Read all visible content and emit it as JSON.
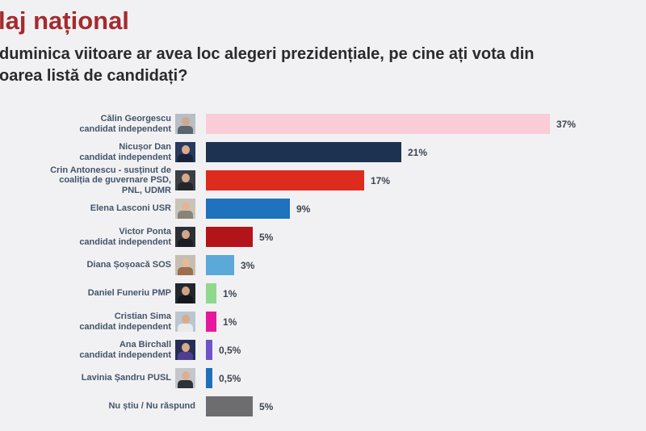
{
  "title": "laj național",
  "question": {
    "line1": "duminica viitoare ar avea loc alegeri prezidențiale, pe cine ați vota din",
    "line2": "oarea listă de candidați?"
  },
  "colors": {
    "background": "#f1f1f3",
    "title": "#a62a2e",
    "question_text": "#2a2a2c",
    "candidate_label": "#44546a",
    "value_label": "#3d4450"
  },
  "chart_data": {
    "type": "bar",
    "orientation": "horizontal",
    "unit": "%",
    "title": "laj național",
    "legend": "none",
    "grid": "off",
    "xlim": [
      0,
      40
    ],
    "categories": [
      "Călin Georgescu candidat independent",
      "Nicușor Dan candidat independent",
      "Crin Antonescu - susținut de coaliția de guvernare PSD, PNL, UDMR",
      "Elena Lasconi USR",
      "Victor Ponta candidat independent",
      "Diana Șoșoacă SOS",
      "Daniel Funeriu PMP",
      "Cristian Sima candidat independent",
      "Ana Birchall candidat independent",
      "Lavinia Șandru PUSL",
      "Nu știu / Nu răspund"
    ],
    "values": [
      37,
      21,
      17,
      9,
      5,
      3,
      1,
      1,
      0.5,
      0.5,
      5
    ],
    "bars": [
      {
        "label_lines": [
          "Călin Georgescu",
          "candidat independent"
        ],
        "value": 37,
        "value_label": "37%",
        "color": "#f8cdd8",
        "photo": {
          "bg": "#b9bec4",
          "head": "#cfa98d",
          "torso": "#5a6570"
        }
      },
      {
        "label_lines": [
          "Nicușor Dan",
          "candidat independent"
        ],
        "value": 21,
        "value_label": "21%",
        "color": "#1d3250",
        "photo": {
          "bg": "#27395c",
          "head": "#d8ab8a",
          "torso": "#17233c"
        }
      },
      {
        "label_lines": [
          "Crin Antonescu - susținut de",
          "coaliția de guvernare PSD,",
          "PNL, UDMR"
        ],
        "value": 17,
        "value_label": "17%",
        "color": "#dd2b1e",
        "photo": {
          "bg": "#3a3f45",
          "head": "#d8a98a",
          "torso": "#23272c"
        }
      },
      {
        "label_lines": [
          "Elena Lasconi USR"
        ],
        "value": 9,
        "value_label": "9%",
        "color": "#1e72be",
        "photo": {
          "bg": "#c9c3b8",
          "head": "#e0b896",
          "torso": "#8a8478"
        }
      },
      {
        "label_lines": [
          "Victor Ponta",
          "candidat independent"
        ],
        "value": 5,
        "value_label": "5%",
        "color": "#b3141a",
        "photo": {
          "bg": "#2b3036",
          "head": "#d3a686",
          "torso": "#1b1f24"
        }
      },
      {
        "label_lines": [
          "Diana Șoșoacă SOS"
        ],
        "value": 3,
        "value_label": "3%",
        "color": "#5aa9d9",
        "photo": {
          "bg": "#c6beb2",
          "head": "#e2bb98",
          "torso": "#9a6e4e"
        }
      },
      {
        "label_lines": [
          "Daniel Funeriu PMP"
        ],
        "value": 1,
        "value_label": "1%",
        "color": "#90d88e",
        "photo": {
          "bg": "#22272e",
          "head": "#d0a482",
          "torso": "#14181e"
        }
      },
      {
        "label_lines": [
          "Cristian Sima",
          "candidat independent"
        ],
        "value": 1,
        "value_label": "1%",
        "color": "#e6189e",
        "photo": {
          "bg": "#bcc6cd",
          "head": "#d6ac8c",
          "torso": "#e8eaec"
        }
      },
      {
        "label_lines": [
          "Ana Birchall",
          "candidat independent"
        ],
        "value": 0.5,
        "value_label": "0,5%",
        "color": "#6f54c8",
        "photo": {
          "bg": "#272e55",
          "head": "#d8ab8a",
          "torso": "#4d3f8f"
        }
      },
      {
        "label_lines": [
          "Lavinia Șandru PUSL"
        ],
        "value": 0.5,
        "value_label": "0,5%",
        "color": "#1e6fba",
        "photo": {
          "bg": "#c3c7cc",
          "head": "#dab092",
          "torso": "#2e3138"
        }
      },
      {
        "label_lines": [
          "Nu știu / Nu răspund"
        ],
        "value": 5,
        "value_label": "5%",
        "color": "#6d6d70",
        "photo": null
      }
    ]
  }
}
